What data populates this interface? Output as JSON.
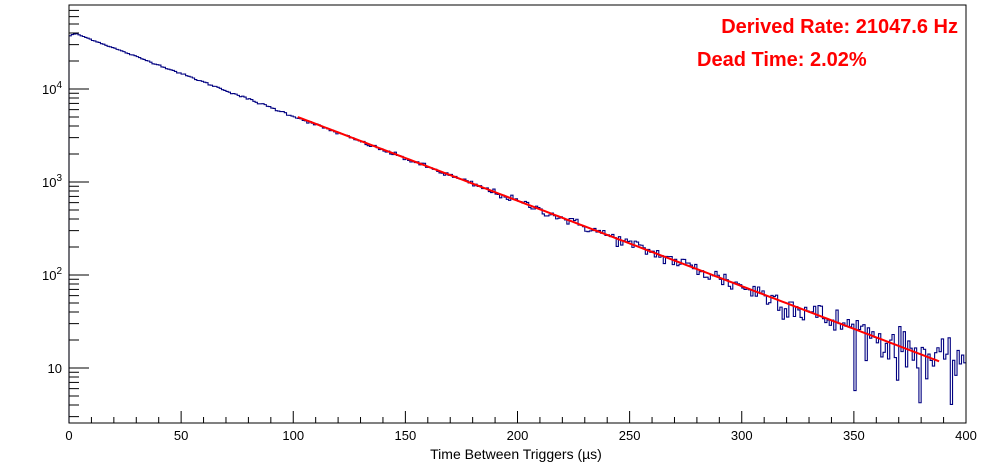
{
  "chart_data": {
    "type": "histogram",
    "title": "",
    "xlabel": "Time Between Triggers (µs)",
    "ylabel": "",
    "xlim": [
      0,
      400
    ],
    "ylim": [
      3,
      70000
    ],
    "yscale": "log",
    "grid": false,
    "legend": "none",
    "x_ticks": [
      0,
      50,
      100,
      150,
      200,
      250,
      300,
      350,
      400
    ],
    "y_ticks": [
      {
        "value": 10,
        "base": "10",
        "exp": ""
      },
      {
        "value": 100,
        "base": "10",
        "exp": "2"
      },
      {
        "value": 1000,
        "base": "10",
        "exp": "3"
      },
      {
        "value": 10000,
        "base": "10",
        "exp": "4"
      }
    ],
    "histogram": {
      "name": "",
      "color": "#000080",
      "bin_width_us": 1,
      "nbins": 400,
      "approx_model": {
        "form": "y = 42000 * exp(-x / 47.5)",
        "start_peak_us": 3,
        "fluctuation": "poisson"
      }
    },
    "fit": {
      "color": "#ff0000",
      "form": "exponential",
      "x_range": [
        102,
        388
      ],
      "y_start": 5000,
      "y_end": 11.8
    },
    "annotations": [
      {
        "text": "Derived Rate: 21047.6 Hz",
        "color": "#ff0000"
      },
      {
        "text": "Dead Time: 2.02%",
        "color": "#ff0000"
      }
    ]
  }
}
